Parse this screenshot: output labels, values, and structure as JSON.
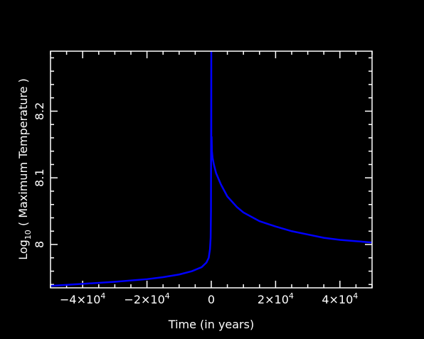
{
  "chart_data": {
    "type": "line",
    "title": "",
    "xlabel": "Time (in years)",
    "ylabel_prefix": "Log",
    "ylabel_sub": "10",
    "ylabel_suffix": " ( Maximum Temperature )",
    "xlim": [
      -50000,
      50000
    ],
    "ylim": [
      7.935,
      8.29
    ],
    "x_ticks": [
      {
        "value": -40000,
        "mantissa": "−4×10",
        "exp": "4"
      },
      {
        "value": -20000,
        "mantissa": "−2×10",
        "exp": "4"
      },
      {
        "value": 0,
        "mantissa": "0",
        "exp": ""
      },
      {
        "value": 20000,
        "mantissa": "2×10",
        "exp": "4"
      },
      {
        "value": 40000,
        "mantissa": "4×10",
        "exp": "4"
      }
    ],
    "y_ticks": [
      {
        "value": 8.0,
        "label": "8"
      },
      {
        "value": 8.1,
        "label": "8.1"
      },
      {
        "value": 8.2,
        "label": "8.2"
      }
    ],
    "grid": false,
    "colors": {
      "background": "#000000",
      "axes": "#ffffff",
      "line": "#0000ff"
    },
    "series": [
      {
        "x": [
          -50000,
          -40000,
          -30000,
          -20000,
          -15000,
          -10000,
          -6000,
          -3000,
          -1500,
          -800,
          -400,
          -200,
          -100,
          0,
          0,
          100,
          200,
          400,
          800,
          1500,
          3000,
          5000,
          8000,
          10000,
          15000,
          20000,
          25000,
          30000,
          35000,
          40000,
          45000,
          50000
        ],
        "y": [
          7.938,
          7.941,
          7.944,
          7.948,
          7.951,
          7.955,
          7.96,
          7.966,
          7.973,
          7.98,
          7.993,
          8.01,
          8.05,
          8.29,
          8.15,
          8.162,
          8.14,
          8.13,
          8.12,
          8.107,
          8.09,
          8.072,
          8.056,
          8.048,
          8.035,
          8.027,
          8.02,
          8.015,
          8.01,
          8.007,
          8.005,
          8.003
        ]
      }
    ]
  }
}
